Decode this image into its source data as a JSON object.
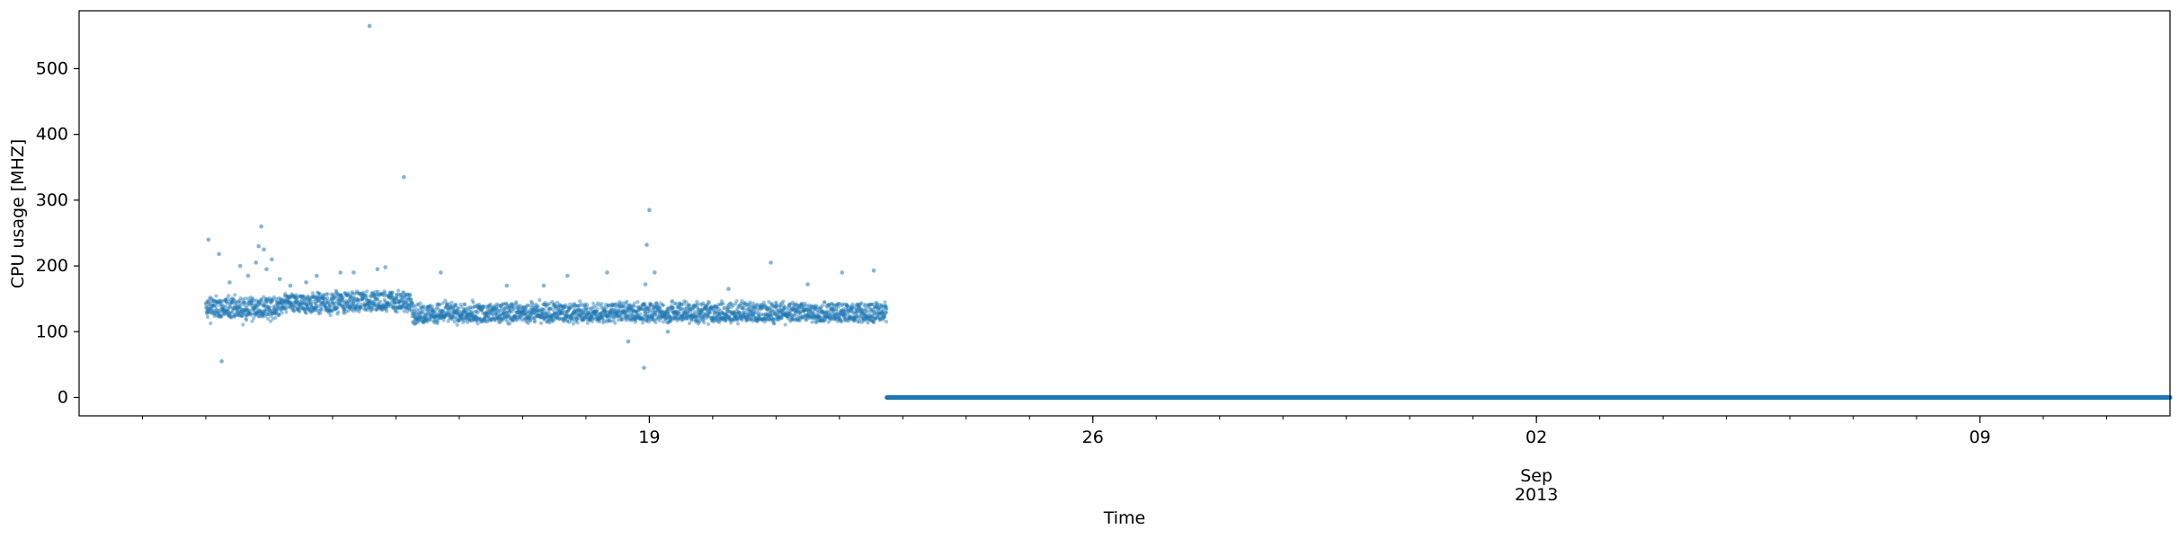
{
  "chart_data": {
    "type": "scatter",
    "title": "",
    "xlabel": "Time",
    "ylabel": "CPU usage [MHZ]",
    "x_range": [
      "2013-08-10",
      "2013-09-12"
    ],
    "ylim": [
      -28,
      588
    ],
    "grid": false,
    "legend": "none",
    "y_ticks": [
      0,
      100,
      200,
      300,
      400,
      500
    ],
    "x_major_ticks": [
      {
        "date": "2013-08-19",
        "label": "19"
      },
      {
        "date": "2013-08-26",
        "label": "26"
      },
      {
        "date": "2013-09-02",
        "label": "02"
      },
      {
        "date": "2013-09-09",
        "label": "09"
      }
    ],
    "x_secondary_label": {
      "date": "2013-09-02",
      "month": "Sep",
      "year": "2013"
    },
    "x_minor_tick_interval_days": 1,
    "series": [
      {
        "color": "#1f77b4",
        "sampling_interval_minutes": 5,
        "active_period": {
          "start": "2013-08-12",
          "end": "2013-08-22 18:00",
          "segments": [
            {
              "from": "2013-08-12 00:00",
              "to": "2013-08-13 06:00",
              "mean": 135,
              "spread": 14
            },
            {
              "from": "2013-08-13 06:00",
              "to": "2013-08-14 00:00",
              "mean": 142,
              "spread": 12
            },
            {
              "from": "2013-08-14 00:00",
              "to": "2013-08-15 06:00",
              "mean": 145,
              "spread": 12
            },
            {
              "from": "2013-08-15 06:00",
              "to": "2013-08-17 00:00",
              "mean": 127,
              "spread": 11
            },
            {
              "from": "2013-08-17 00:00",
              "to": "2013-08-22 18:00",
              "mean": 128,
              "spread": 11
            }
          ]
        },
        "idle_period": {
          "start": "2013-08-22 18:00",
          "end": "2013-09-12",
          "value": 0
        },
        "outliers": [
          {
            "x": "2013-08-12 01:00",
            "y": 240
          },
          {
            "x": "2013-08-12 05:00",
            "y": 218
          },
          {
            "x": "2013-08-12 09:00",
            "y": 175
          },
          {
            "x": "2013-08-12 06:00",
            "y": 55
          },
          {
            "x": "2013-08-12 13:00",
            "y": 200
          },
          {
            "x": "2013-08-12 16:00",
            "y": 185
          },
          {
            "x": "2013-08-12 19:00",
            "y": 205
          },
          {
            "x": "2013-08-12 20:00",
            "y": 230
          },
          {
            "x": "2013-08-12 21:00",
            "y": 260
          },
          {
            "x": "2013-08-12 22:00",
            "y": 225
          },
          {
            "x": "2013-08-12 23:00",
            "y": 195
          },
          {
            "x": "2013-08-13 01:00",
            "y": 210
          },
          {
            "x": "2013-08-13 04:00",
            "y": 180
          },
          {
            "x": "2013-08-13 08:00",
            "y": 170
          },
          {
            "x": "2013-08-13 14:00",
            "y": 175
          },
          {
            "x": "2013-08-13 18:00",
            "y": 185
          },
          {
            "x": "2013-08-14 03:00",
            "y": 190
          },
          {
            "x": "2013-08-14 08:00",
            "y": 190
          },
          {
            "x": "2013-08-14 14:00",
            "y": 565
          },
          {
            "x": "2013-08-14 17:00",
            "y": 195
          },
          {
            "x": "2013-08-14 20:00",
            "y": 198
          },
          {
            "x": "2013-08-15 03:00",
            "y": 335
          },
          {
            "x": "2013-08-15 17:00",
            "y": 190
          },
          {
            "x": "2013-08-16 18:00",
            "y": 170
          },
          {
            "x": "2013-08-17 08:00",
            "y": 170
          },
          {
            "x": "2013-08-17 17:00",
            "y": 185
          },
          {
            "x": "2013-08-18 08:00",
            "y": 190
          },
          {
            "x": "2013-08-18 16:00",
            "y": 85
          },
          {
            "x": "2013-08-18 22:00",
            "y": 45
          },
          {
            "x": "2013-08-18 22:30",
            "y": 172
          },
          {
            "x": "2013-08-18 23:00",
            "y": 232
          },
          {
            "x": "2013-08-19 00:00",
            "y": 285
          },
          {
            "x": "2013-08-19 02:00",
            "y": 190
          },
          {
            "x": "2013-08-19 07:00",
            "y": 100
          },
          {
            "x": "2013-08-20 06:00",
            "y": 165
          },
          {
            "x": "2013-08-20 22:00",
            "y": 205
          },
          {
            "x": "2013-08-21 12:00",
            "y": 172
          },
          {
            "x": "2013-08-22 01:00",
            "y": 190
          },
          {
            "x": "2013-08-22 13:00",
            "y": 193
          }
        ]
      }
    ]
  }
}
